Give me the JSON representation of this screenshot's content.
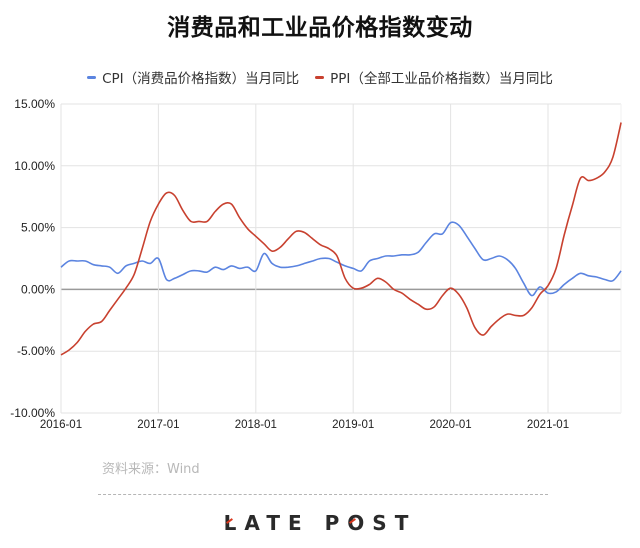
{
  "title": "消费品和工业品价格指数变动",
  "legend": [
    {
      "label": "CPI（消费品价格指数）当月同比",
      "color": "#5b84e0"
    },
    {
      "label": "PPI（全部工业品价格指数）当月同比",
      "color": "#c8412f"
    }
  ],
  "source": "资料来源：Wind",
  "logo": {
    "text_a": "LATE",
    "text_b": "POST"
  },
  "colors": {
    "cpi": "#5b84e0",
    "ppi": "#c8412f",
    "grid": "#e3e3e3",
    "zero_line": "#9a9a9a"
  },
  "chart_data": {
    "type": "line",
    "title": "消费品和工业品价格指数变动",
    "xlabel": "",
    "ylabel": "",
    "ylim": [
      -10,
      15
    ],
    "y_ticks": [
      "15.00%",
      "10.00%",
      "5.00%",
      "0.00%",
      "-5.00%",
      "-10.00%"
    ],
    "y_tick_values": [
      15,
      10,
      5,
      0,
      -5,
      -10
    ],
    "x_ticks": [
      "2016-01",
      "2017-01",
      "2018-01",
      "2019-01",
      "2020-01",
      "2021-01"
    ],
    "grid": true,
    "legend_position": "top",
    "x_start": "2016-01",
    "x_end": "2021-10",
    "series": [
      {
        "name": "CPI（消费品价格指数）当月同比",
        "values": [
          1.8,
          2.3,
          2.3,
          2.3,
          2.0,
          1.9,
          1.8,
          1.3,
          1.9,
          2.1,
          2.3,
          2.1,
          2.5,
          0.8,
          0.9,
          1.2,
          1.5,
          1.5,
          1.4,
          1.8,
          1.6,
          1.9,
          1.7,
          1.8,
          1.5,
          2.9,
          2.1,
          1.8,
          1.8,
          1.9,
          2.1,
          2.3,
          2.5,
          2.5,
          2.2,
          1.9,
          1.7,
          1.5,
          2.3,
          2.5,
          2.7,
          2.7,
          2.8,
          2.8,
          3.0,
          3.8,
          4.5,
          4.5,
          5.4,
          5.2,
          4.3,
          3.3,
          2.4,
          2.5,
          2.7,
          2.4,
          1.7,
          0.5,
          -0.5,
          0.2,
          -0.3,
          -0.2,
          0.4,
          0.9,
          1.3,
          1.1,
          1.0,
          0.8,
          0.7,
          1.5
        ]
      },
      {
        "name": "PPI（全部工业品价格指数）当月同比",
        "values": [
          -5.3,
          -4.9,
          -4.3,
          -3.4,
          -2.8,
          -2.6,
          -1.7,
          -0.8,
          0.1,
          1.2,
          3.3,
          5.5,
          6.9,
          7.8,
          7.6,
          6.4,
          5.5,
          5.5,
          5.5,
          6.3,
          6.9,
          6.9,
          5.8,
          4.9,
          4.3,
          3.7,
          3.1,
          3.4,
          4.1,
          4.7,
          4.6,
          4.1,
          3.6,
          3.3,
          2.7,
          0.9,
          0.1,
          0.1,
          0.4,
          0.9,
          0.6,
          0.0,
          -0.3,
          -0.8,
          -1.2,
          -1.6,
          -1.4,
          -0.5,
          0.1,
          -0.4,
          -1.5,
          -3.1,
          -3.7,
          -3.0,
          -2.4,
          -2.0,
          -2.1,
          -2.1,
          -1.5,
          -0.4,
          0.3,
          1.7,
          4.4,
          6.8,
          9.0,
          8.8,
          9.0,
          9.5,
          10.7,
          13.5
        ]
      }
    ]
  }
}
